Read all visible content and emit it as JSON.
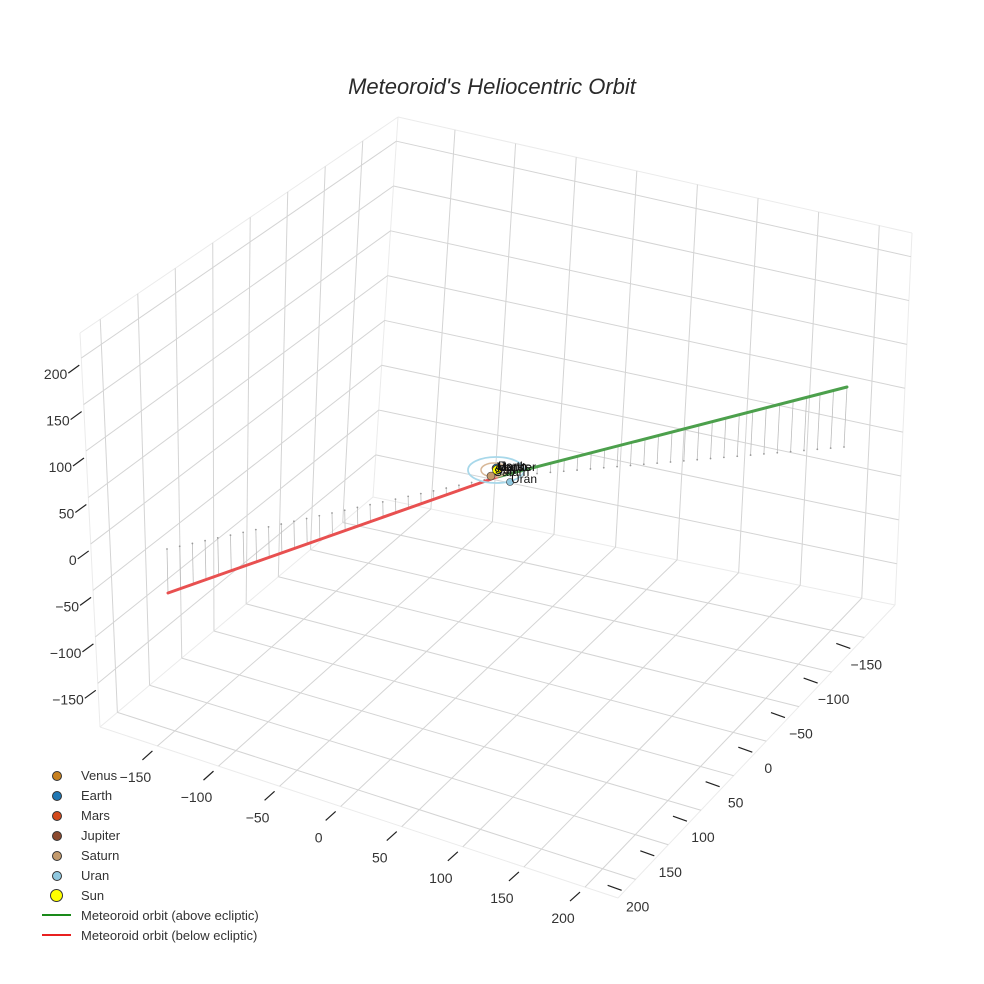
{
  "chart_data": {
    "type": "scatter3d",
    "title": "Meteoroid's Heliocentric Orbit",
    "axes": {
      "x": {
        "label": "",
        "ticks": [
          -150,
          -100,
          -50,
          0,
          50,
          100,
          150,
          200
        ],
        "range": [
          -197,
          227
        ]
      },
      "y": {
        "label": "",
        "ticks": [
          -150,
          -100,
          -50,
          0,
          50,
          100,
          150,
          200
        ],
        "range": [
          -197,
          227
        ]
      },
      "z": {
        "label": "",
        "ticks": [
          -150,
          -100,
          -50,
          0,
          50,
          100,
          150,
          200
        ],
        "range": [
          -197,
          227
        ]
      }
    },
    "grid": true,
    "legend_position": "bottom-left",
    "series": [
      {
        "name": "Venus",
        "type": "marker",
        "color": "#c8801e",
        "position": [
          0,
          0,
          0
        ]
      },
      {
        "name": "Earth",
        "type": "marker",
        "color": "#1f77b4",
        "position": [
          1,
          0,
          0
        ]
      },
      {
        "name": "Mars",
        "type": "marker",
        "color": "#d44a1c",
        "position": [
          -1.5,
          0,
          0
        ]
      },
      {
        "name": "Jupiter",
        "type": "marker",
        "color": "#8c4a2f",
        "position": [
          5,
          0,
          0
        ]
      },
      {
        "name": "Saturn",
        "type": "marker",
        "color": "#c49a6c",
        "position": [
          -9,
          3,
          0
        ]
      },
      {
        "name": "Uran",
        "type": "marker",
        "color": "#8fc8e0",
        "position": [
          5,
          18,
          0
        ]
      },
      {
        "name": "Sun",
        "type": "marker",
        "color": "#ffff00",
        "position": [
          0,
          0,
          0
        ]
      },
      {
        "name": "Meteoroid orbit (above ecliptic)",
        "type": "line",
        "color": "#2e9a2e",
        "start": [
          0,
          0,
          0
        ],
        "end": [
          210,
          -150,
          60
        ]
      },
      {
        "name": "Meteoroid orbit (below ecliptic)",
        "type": "line",
        "color": "#e83030",
        "start": [
          0,
          0,
          0
        ],
        "end": [
          -150,
          195,
          -60
        ]
      }
    ]
  },
  "title": "Meteoroid's Heliocentric Orbit",
  "ticks": {
    "z": [
      "200",
      "150",
      "100",
      "50",
      "0",
      "−50",
      "−100",
      "−150"
    ],
    "x": [
      "−150",
      "−100",
      "−50",
      "0",
      "50",
      "100",
      "150",
      "200"
    ],
    "y": [
      "−150",
      "−100",
      "−50",
      "0",
      "50",
      "100",
      "150",
      "200"
    ]
  },
  "planet_labels": [
    "Venus",
    "Earth",
    "Mars",
    "Jupiter",
    "Saturn",
    "Uran",
    "Sun"
  ],
  "legend": [
    {
      "label": "Venus",
      "kind": "dot",
      "color": "#c8801e"
    },
    {
      "label": "Earth",
      "kind": "dot",
      "color": "#1f77b4"
    },
    {
      "label": "Mars",
      "kind": "dot",
      "color": "#d44a1c"
    },
    {
      "label": "Jupiter",
      "kind": "dot",
      "color": "#8c4a2f"
    },
    {
      "label": "Saturn",
      "kind": "dot",
      "color": "#c49a6c"
    },
    {
      "label": "Uran",
      "kind": "dot",
      "color": "#8fc8e0"
    },
    {
      "label": "Sun",
      "kind": "bigdot",
      "color": "#ffff00"
    },
    {
      "label": "Meteoroid orbit (above ecliptic)",
      "kind": "line",
      "color": "#1a8a1a"
    },
    {
      "label": "Meteoroid orbit (below ecliptic)",
      "kind": "line",
      "color": "#e82020"
    }
  ]
}
